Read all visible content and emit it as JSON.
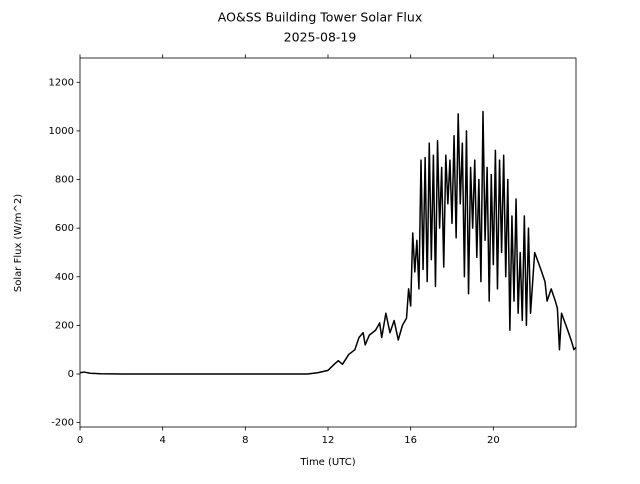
{
  "chart_data": {
    "type": "line",
    "title": "AO&SS Building Tower Solar Flux",
    "subtitle": "2025-08-19",
    "xlabel": "Time (UTC)",
    "ylabel": "Solar Flux (W/m^2)",
    "xlim": [
      0,
      24
    ],
    "xticks": [
      0,
      4,
      8,
      12,
      16,
      20
    ],
    "ylim": [
      -218,
      1300
    ],
    "yticks": [
      -200,
      0,
      200,
      400,
      600,
      800,
      1000,
      1200
    ],
    "grid": false,
    "series": [
      {
        "name": "Solar Flux",
        "color": "#000000",
        "x": [
          0,
          0.2,
          0.5,
          1,
          2,
          4,
          6,
          8,
          10,
          11,
          11.5,
          12,
          12.3,
          12.5,
          12.7,
          13,
          13.3,
          13.5,
          13.7,
          13.8,
          14,
          14.3,
          14.5,
          14.6,
          14.8,
          15,
          15.2,
          15.4,
          15.6,
          15.8,
          15.9,
          16,
          16.1,
          16.2,
          16.3,
          16.4,
          16.5,
          16.6,
          16.7,
          16.8,
          16.9,
          17,
          17.1,
          17.2,
          17.3,
          17.4,
          17.5,
          17.6,
          17.7,
          17.8,
          17.9,
          18,
          18.1,
          18.2,
          18.3,
          18.4,
          18.5,
          18.6,
          18.7,
          18.8,
          18.9,
          19,
          19.1,
          19.2,
          19.3,
          19.4,
          19.5,
          19.6,
          19.7,
          19.8,
          19.9,
          20,
          20.1,
          20.2,
          20.3,
          20.4,
          20.5,
          20.6,
          20.7,
          20.8,
          20.9,
          21,
          21.1,
          21.2,
          21.3,
          21.4,
          21.5,
          21.6,
          21.7,
          21.8,
          22,
          22.3,
          22.5,
          22.6,
          22.8,
          23,
          23.1,
          23.2,
          23.3,
          23.6,
          23.8,
          23.9,
          24
        ],
        "values": [
          5,
          8,
          3,
          1,
          0,
          0,
          0,
          0,
          0,
          0,
          5,
          15,
          40,
          55,
          40,
          80,
          100,
          150,
          170,
          120,
          160,
          180,
          210,
          150,
          250,
          170,
          220,
          140,
          200,
          230,
          350,
          280,
          580,
          420,
          550,
          350,
          880,
          430,
          890,
          380,
          950,
          470,
          900,
          360,
          960,
          600,
          850,
          440,
          900,
          700,
          880,
          620,
          980,
          560,
          1070,
          700,
          950,
          400,
          1000,
          330,
          850,
          600,
          880,
          480,
          800,
          380,
          1080,
          550,
          850,
          300,
          820,
          450,
          920,
          350,
          880,
          500,
          900,
          400,
          800,
          180,
          650,
          300,
          720,
          250,
          500,
          220,
          650,
          200,
          600,
          250,
          500,
          430,
          380,
          300,
          350,
          300,
          270,
          100,
          250,
          180,
          130,
          100,
          110
        ]
      }
    ]
  }
}
